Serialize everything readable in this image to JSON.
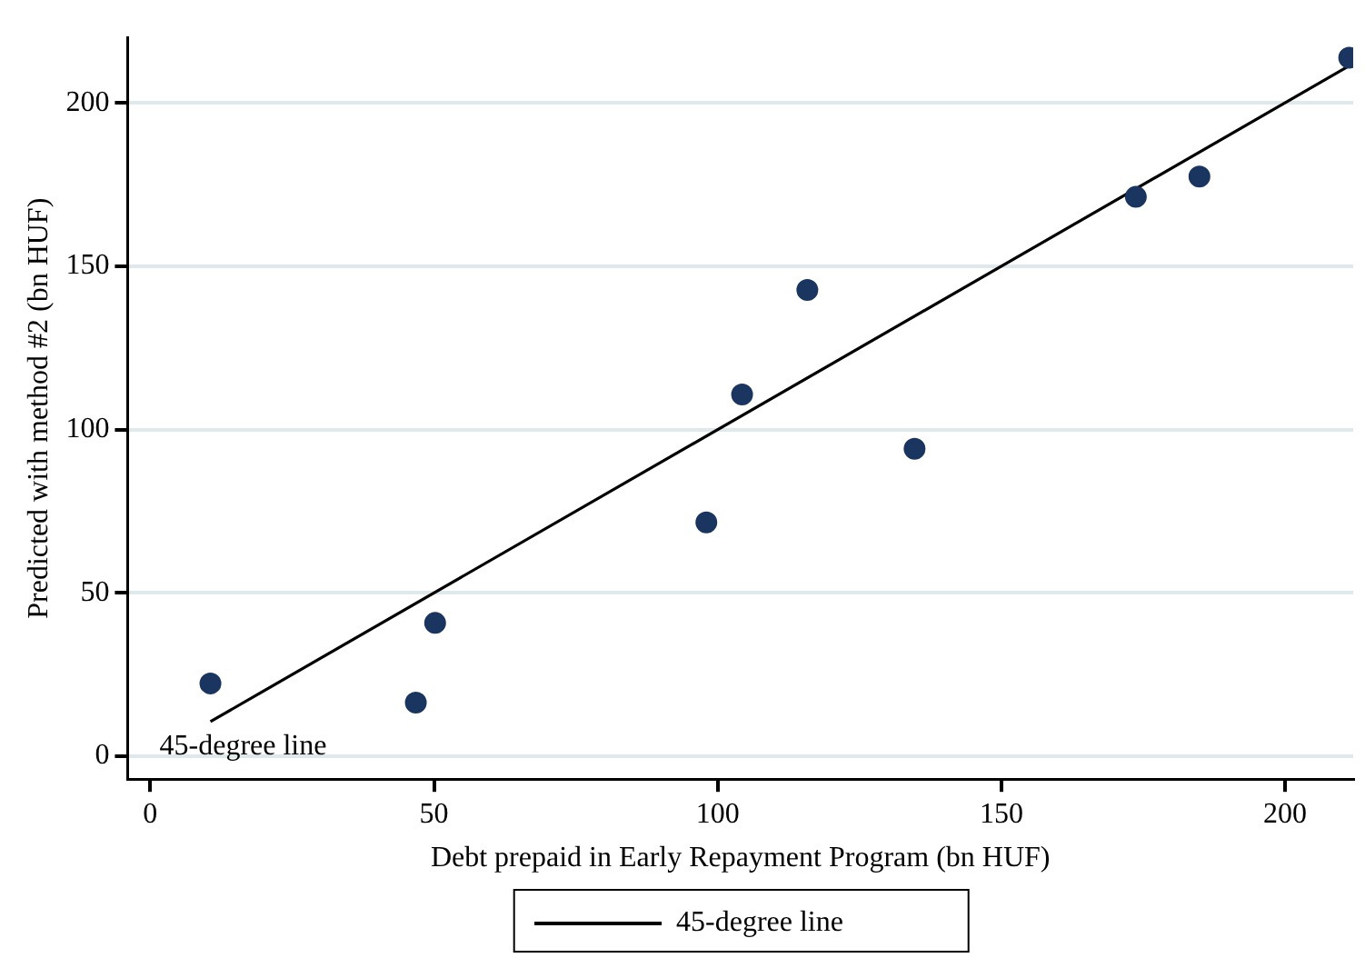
{
  "chart_data": {
    "type": "scatter",
    "xlabel": "Debt prepaid in Early Repayment Program (bn HUF)",
    "ylabel": "Predicted with method #2 (bn HUF)",
    "series": [
      {
        "type": "scatter",
        "color": "#1a3560",
        "x": [
          10.6,
          46.8,
          50.2,
          98.0,
          104.3,
          115.8,
          134.7,
          173.7,
          184.9,
          211.3
        ],
        "values": [
          22.3,
          16.4,
          40.8,
          71.6,
          110.7,
          142.7,
          94.1,
          171.2,
          177.4,
          213.8
        ]
      },
      {
        "type": "line",
        "name": "45-degree line",
        "color": "#000000",
        "x": [
          10.6,
          211.3
        ],
        "values": [
          10.6,
          211.3
        ],
        "marker": "none",
        "line_style": "solid"
      }
    ],
    "xlim": [
      -4,
      212
    ],
    "ylim": [
      -7,
      220
    ],
    "xticks": [
      0,
      50,
      100,
      150,
      200
    ],
    "yticks": [
      0,
      50,
      100,
      150,
      200
    ],
    "grid": "y",
    "legend": "bottom",
    "marker": "circle",
    "annotations": [
      {
        "text": "45-degree line",
        "x": 10.6,
        "y": 10.6
      }
    ]
  }
}
